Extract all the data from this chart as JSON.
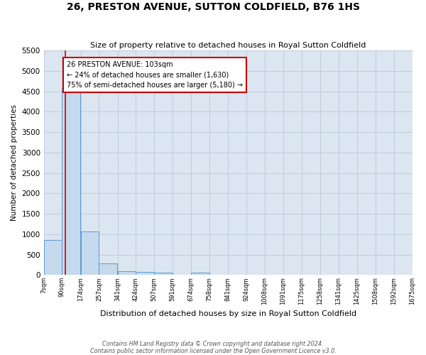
{
  "title": "26, PRESTON AVENUE, SUTTON COLDFIELD, B76 1HS",
  "subtitle": "Size of property relative to detached houses in Royal Sutton Coldfield",
  "xlabel": "Distribution of detached houses by size in Royal Sutton Coldfield",
  "ylabel": "Number of detached properties",
  "footnote1": "Contains HM Land Registry data © Crown copyright and database right 2024.",
  "footnote2": "Contains public sector information licensed under the Open Government Licence v3.0.",
  "annotation_line1": "26 PRESTON AVENUE: 103sqm",
  "annotation_line2": "← 24% of detached houses are smaller (1,630)",
  "annotation_line3": "75% of semi-detached houses are larger (5,180) →",
  "bar_color": "#c7d9ec",
  "bar_edge_color": "#5b9bd5",
  "red_line_color": "#cc0000",
  "annotation_box_color": "#cc0000",
  "grid_color": "#b8c8dc",
  "background_color": "#dce6f0",
  "bins": [
    7,
    90,
    174,
    257,
    341,
    424,
    507,
    591,
    674,
    758,
    841,
    924,
    1008,
    1091,
    1175,
    1258,
    1341,
    1425,
    1508,
    1592,
    1675
  ],
  "values": [
    850,
    4600,
    1060,
    290,
    90,
    80,
    55,
    0,
    55,
    0,
    0,
    0,
    0,
    0,
    0,
    0,
    0,
    0,
    0,
    0
  ],
  "property_size": 103,
  "ylim": [
    0,
    5500
  ],
  "yticks": [
    0,
    500,
    1000,
    1500,
    2000,
    2500,
    3000,
    3500,
    4000,
    4500,
    5000,
    5500
  ]
}
